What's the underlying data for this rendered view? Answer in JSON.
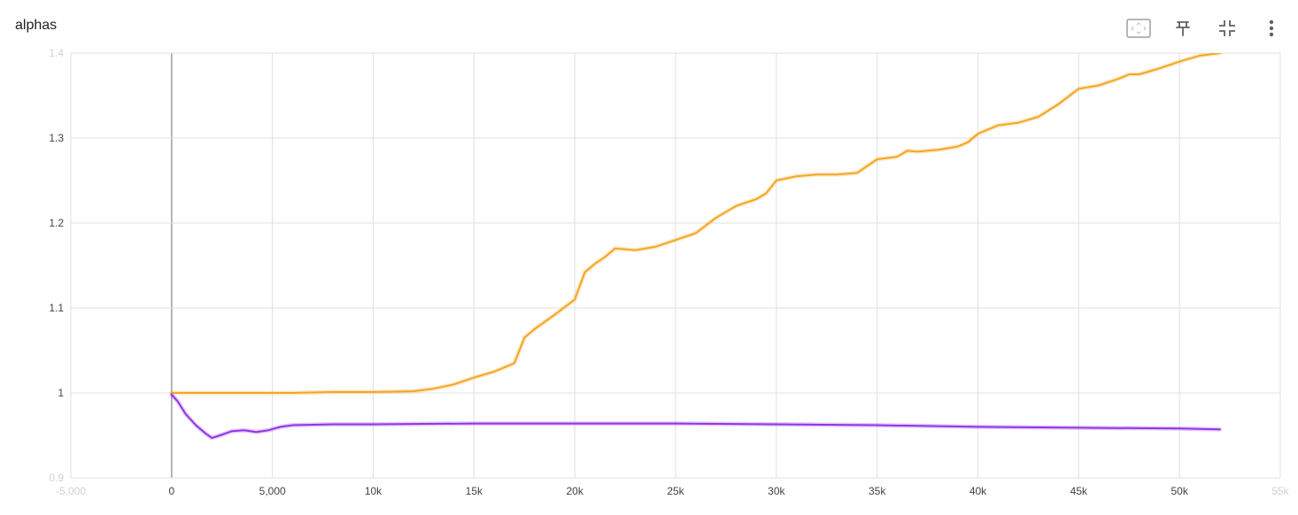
{
  "card": {
    "title": "alphas"
  },
  "toolbar": {
    "icons": [
      "fit-domain-icon",
      "pin-icon",
      "collapse-icon",
      "more-vert-icon"
    ]
  },
  "colors": {
    "series_orange": "#f5a623",
    "series_purple": "#9334e6",
    "grid": "#e0e0e0",
    "axis": "#9e9e9e",
    "icon": "#616161"
  },
  "chart_data": {
    "type": "line",
    "title": "alphas",
    "xlabel": "",
    "ylabel": "",
    "xlim": [
      -5000,
      55000
    ],
    "ylim": [
      0.9,
      1.4
    ],
    "grid": true,
    "x_ticks": [
      -5000,
      0,
      5000,
      10000,
      15000,
      20000,
      25000,
      30000,
      35000,
      40000,
      45000,
      50000,
      55000
    ],
    "x_tick_labels": [
      "-5,000",
      "0",
      "5,000",
      "10k",
      "15k",
      "20k",
      "25k",
      "30k",
      "35k",
      "40k",
      "45k",
      "50k",
      "55k"
    ],
    "y_ticks": [
      0.9,
      1.0,
      1.1,
      1.2,
      1.3,
      1.4
    ],
    "y_tick_labels": [
      "0.9",
      "1",
      "1.1",
      "1.2",
      "1.3",
      "1.4"
    ],
    "series": [
      {
        "color": "#f5a623",
        "x": [
          0,
          2000,
          4000,
          6000,
          8000,
          10000,
          12000,
          13000,
          14000,
          15000,
          16000,
          17000,
          17500,
          18000,
          19000,
          20000,
          20500,
          21000,
          21500,
          22000,
          23000,
          24000,
          25000,
          26000,
          27000,
          28000,
          29000,
          29500,
          30000,
          31000,
          32000,
          33000,
          34000,
          35000,
          36000,
          36500,
          37000,
          38000,
          39000,
          39500,
          40000,
          41000,
          42000,
          43000,
          44000,
          45000,
          46000,
          47000,
          47500,
          48000,
          49000,
          50000,
          51000,
          52000
        ],
        "values": [
          1.0,
          1.0,
          1.0,
          1.0,
          1.001,
          1.001,
          1.002,
          1.005,
          1.01,
          1.018,
          1.025,
          1.035,
          1.065,
          1.075,
          1.092,
          1.11,
          1.142,
          1.152,
          1.16,
          1.17,
          1.168,
          1.172,
          1.18,
          1.188,
          1.206,
          1.22,
          1.228,
          1.235,
          1.25,
          1.255,
          1.257,
          1.257,
          1.259,
          1.275,
          1.278,
          1.285,
          1.284,
          1.286,
          1.29,
          1.295,
          1.305,
          1.315,
          1.318,
          1.325,
          1.34,
          1.358,
          1.362,
          1.37,
          1.375,
          1.375,
          1.382,
          1.39,
          1.397,
          1.4
        ]
      },
      {
        "color": "#9334e6",
        "x": [
          0,
          300,
          700,
          1200,
          1700,
          2000,
          2400,
          3000,
          3600,
          4200,
          4800,
          5400,
          6000,
          8000,
          10000,
          15000,
          20000,
          25000,
          30000,
          35000,
          40000,
          45000,
          50000,
          52000
        ],
        "values": [
          0.998,
          0.99,
          0.975,
          0.962,
          0.952,
          0.947,
          0.95,
          0.955,
          0.956,
          0.954,
          0.956,
          0.96,
          0.962,
          0.963,
          0.963,
          0.964,
          0.964,
          0.964,
          0.963,
          0.962,
          0.96,
          0.959,
          0.958,
          0.957
        ]
      }
    ]
  }
}
